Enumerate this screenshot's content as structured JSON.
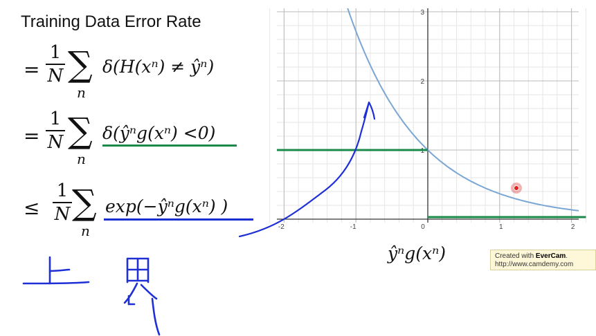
{
  "title": "Training Data Error Rate",
  "equations": [
    {
      "relation": "=",
      "numerator": "1",
      "denominator": "N",
      "sum_sub": "n",
      "expression": "δ(H(xⁿ) ≠ ŷⁿ)"
    },
    {
      "relation": "=",
      "numerator": "1",
      "denominator": "N",
      "sum_sub": "n",
      "expression": "δ(ŷⁿg(xⁿ) <0)",
      "underline_color": "#1a8a4a"
    },
    {
      "relation": "≤",
      "numerator": "1",
      "denominator": "N",
      "sum_sub": "n",
      "expression": "exp(−ŷⁿg(xⁿ) )",
      "underline_color": "#1a2fd0"
    }
  ],
  "graph": {
    "x_axis_label": "ŷⁿg(xⁿ)",
    "x_ticks": [
      "-2",
      "-1",
      "0",
      "1",
      "2"
    ],
    "y_ticks": [
      "1",
      "2",
      "3"
    ],
    "xlim": [
      -2.1,
      2.1
    ],
    "ylim": [
      -0.05,
      3.05
    ],
    "curve": "exp(-z)",
    "curve_color": "#7aa6d4",
    "step_function": [
      {
        "x_from": -2.2,
        "x_to": 0,
        "y": 1
      },
      {
        "x_from": 0,
        "x_to": 2.2,
        "y": 0
      }
    ],
    "step_color": "#1a8a4a",
    "grid": true
  },
  "handwriting": {
    "text": "上界",
    "color": "#1e2fd6"
  },
  "watermark": {
    "line1_prefix": "Created with ",
    "brand": "EverCam",
    "line1_suffix": ".",
    "line2": "http://www.camdemy.com"
  },
  "cursor_color": "#e02020"
}
